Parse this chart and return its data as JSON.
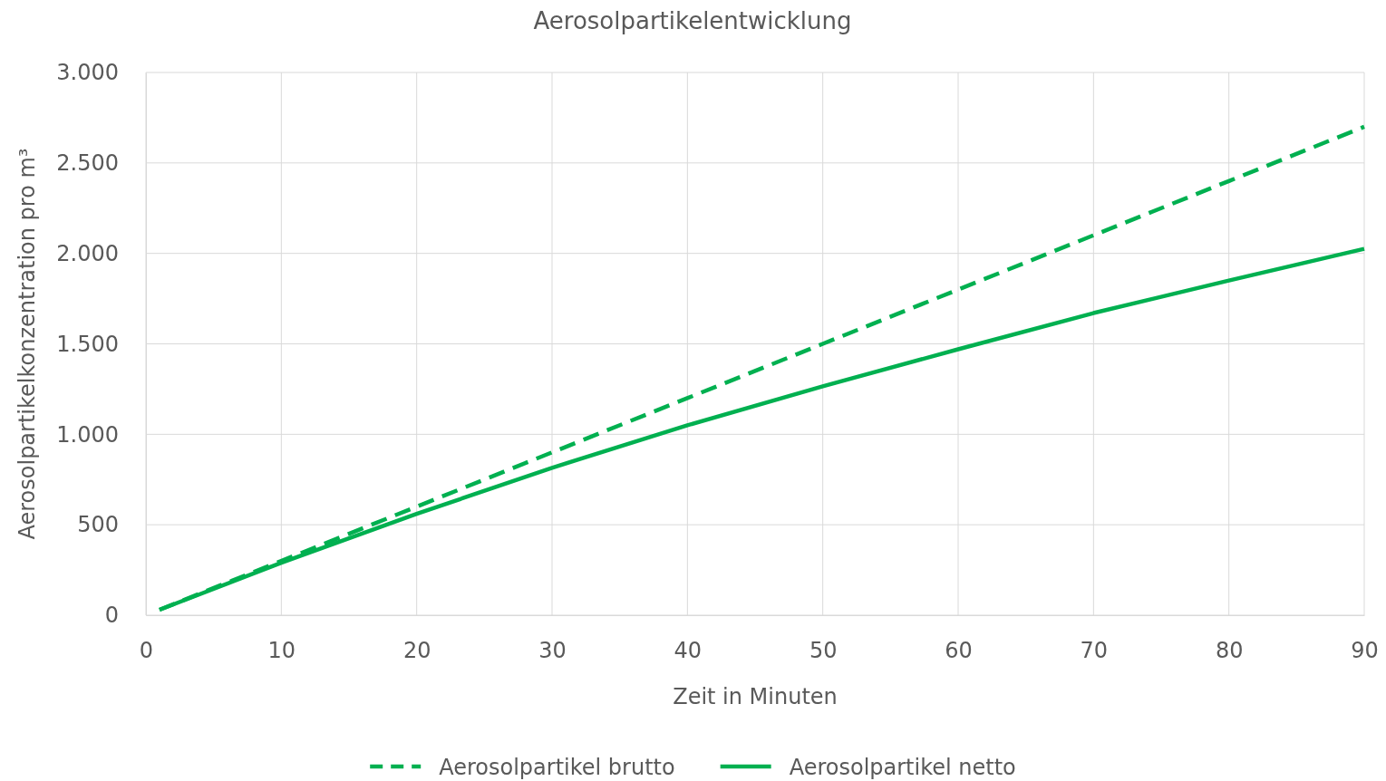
{
  "chart_data": {
    "type": "line",
    "title": "Aerosolpartikelentwicklung",
    "xlabel": "Zeit in Minuten",
    "ylabel": "Aerosolpartikelkonzentration  pro m³",
    "x": [
      1,
      10,
      20,
      30,
      40,
      50,
      60,
      70,
      80,
      90
    ],
    "series": [
      {
        "name": "Aerosolpartikel brutto",
        "color": "#00b050",
        "line_style": "dashed",
        "values": [
          30,
          300,
          600,
          900,
          1200,
          1500,
          1800,
          2100,
          2400,
          2700
        ]
      },
      {
        "name": "Aerosolpartikel netto",
        "color": "#00b050",
        "line_style": "solid",
        "values": [
          30,
          290,
          560,
          815,
          1050,
          1265,
          1470,
          1670,
          1850,
          2025
        ]
      }
    ],
    "xlim": [
      0,
      90
    ],
    "xticks": [
      0,
      10,
      20,
      30,
      40,
      50,
      60,
      70,
      80,
      90
    ],
    "ylim": [
      0,
      3000
    ],
    "yticks": [
      0,
      500,
      {
        "value": 1000,
        "label": "1.000"
      },
      {
        "value": 1500,
        "label": "1.500"
      },
      {
        "value": 2000,
        "label": "2.000"
      },
      {
        "value": 2500,
        "label": "2.500"
      },
      {
        "value": 3000,
        "label": "3.000"
      }
    ],
    "grid": true,
    "legend": "bottom"
  }
}
